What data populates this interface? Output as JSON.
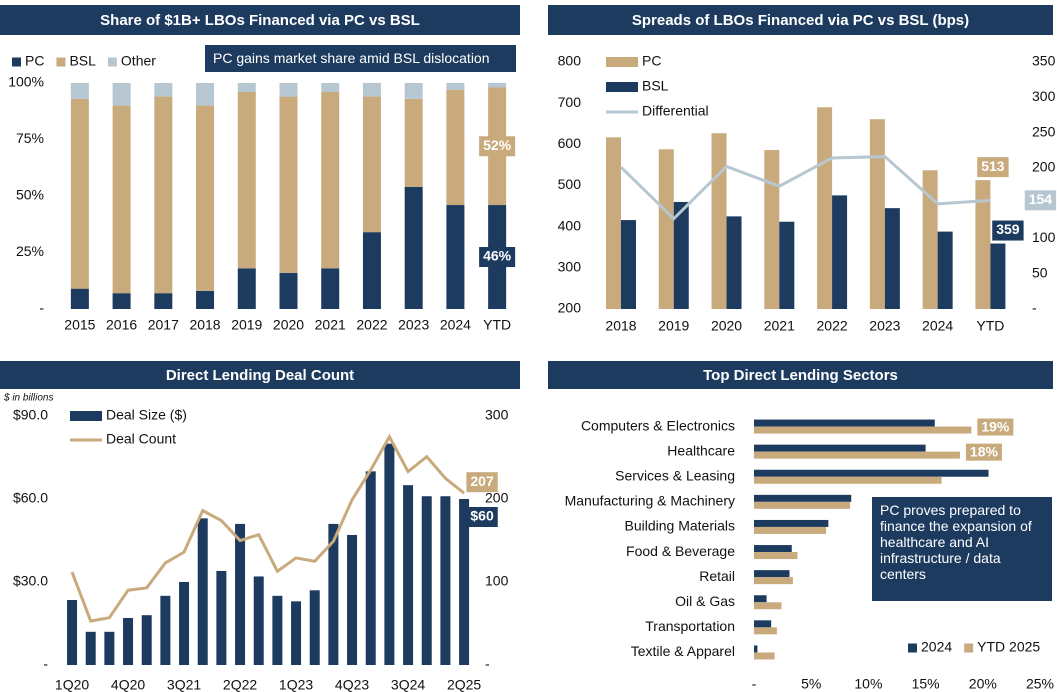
{
  "chart_data": [
    {
      "type": "stacked_bar",
      "title": "Share of $1B+ LBOs Financed via PC vs BSL",
      "annotation": "PC gains market share amid BSL dislocation",
      "categories": [
        "2015",
        "2016",
        "2017",
        "2018",
        "2019",
        "2020",
        "2021",
        "2022",
        "2023",
        "2024",
        "YTD"
      ],
      "series": [
        {
          "name": "PC",
          "color": "#1d3a5f",
          "values": [
            9,
            7,
            7,
            8,
            18,
            16,
            18,
            34,
            54,
            46,
            46
          ],
          "value_labels": [
            null,
            null,
            null,
            null,
            null,
            null,
            null,
            null,
            null,
            null,
            "46%"
          ]
        },
        {
          "name": "BSL",
          "color": "#c8aa7d",
          "values": [
            84,
            83,
            87,
            82,
            78,
            78,
            78,
            60,
            39,
            51,
            52
          ],
          "value_labels": [
            null,
            null,
            null,
            null,
            null,
            null,
            null,
            null,
            null,
            null,
            "52%"
          ]
        },
        {
          "name": "Other",
          "color": "#b7c7d1",
          "values": [
            7,
            10,
            6,
            10,
            4,
            6,
            4,
            6,
            7,
            3,
            2
          ]
        }
      ],
      "ylim": [
        0,
        100
      ],
      "yticks": [
        {
          "value": 0,
          "label": "-"
        },
        {
          "value": 25,
          "label": "25%"
        },
        {
          "value": 50,
          "label": "50%"
        },
        {
          "value": 75,
          "label": "75%"
        },
        {
          "value": 100,
          "label": "100%"
        }
      ],
      "legend": "top-left"
    },
    {
      "type": "bar_line",
      "title": "Spreads of LBOs Financed via PC vs BSL (bps)",
      "categories": [
        "2018",
        "2019",
        "2020",
        "2021",
        "2022",
        "2023",
        "2024",
        "YTD"
      ],
      "series": [
        {
          "name": "PC",
          "color": "#c8aa7d",
          "values": [
            617,
            588,
            627,
            586,
            690,
            661,
            537,
            513
          ],
          "data_labels": "last"
        },
        {
          "name": "BSL",
          "color": "#1d3a5f",
          "values": [
            416,
            460,
            425,
            412,
            476,
            445,
            388,
            359
          ],
          "data_labels": "last"
        },
        {
          "name": "Differential",
          "color": "#b7c7d1",
          "axis": "y2",
          "values": [
            201,
            128,
            202,
            174,
            214,
            216,
            149,
            154
          ],
          "data_labels": "last"
        }
      ],
      "ylim": [
        200,
        800
      ],
      "yticks": [
        200,
        300,
        400,
        500,
        600,
        700,
        800
      ],
      "y2lim": [
        0,
        350
      ],
      "y2ticks": [
        {
          "value": 0,
          "label": "-"
        },
        50,
        100,
        150,
        200,
        250,
        300,
        350
      ],
      "legend": "top-left"
    },
    {
      "type": "bar_line",
      "title": "Direct Lending Deal Count",
      "subtitle": "$ in billions",
      "categories": [
        "1Q20",
        null,
        null,
        "4Q20",
        null,
        null,
        "3Q21",
        null,
        null,
        "2Q22",
        null,
        null,
        "1Q23",
        null,
        null,
        "4Q23",
        null,
        null,
        "3Q24",
        null,
        null,
        "2Q25"
      ],
      "series": [
        {
          "name": "Deal Size ($)",
          "color": "#1d3a5f",
          "values": [
            23.5,
            12,
            12,
            17,
            18,
            25,
            30,
            53,
            34,
            51,
            32,
            25,
            23,
            27,
            51,
            47,
            70,
            80,
            65,
            61,
            61,
            60
          ],
          "value_labels": [
            null,
            null,
            null,
            null,
            null,
            null,
            null,
            null,
            null,
            null,
            null,
            null,
            null,
            null,
            null,
            null,
            null,
            null,
            null,
            null,
            null,
            "$60"
          ]
        },
        {
          "name": "Deal Count",
          "color": "#c8aa7d",
          "axis": "y2",
          "values": [
            112,
            53,
            57,
            90,
            93,
            123,
            136,
            186,
            174,
            150,
            157,
            113,
            129,
            125,
            149,
            199,
            235,
            275,
            233,
            251,
            225,
            207
          ],
          "data_labels": "last"
        }
      ],
      "ylim": [
        0,
        90
      ],
      "yticks": [
        {
          "value": 0,
          "label": "-"
        },
        {
          "value": 30,
          "label": "$30.0"
        },
        {
          "value": 60,
          "label": "$60.0"
        },
        {
          "value": 90,
          "label": "$90.0"
        }
      ],
      "y2lim": [
        0,
        300
      ],
      "y2ticks": [
        {
          "value": 0,
          "label": "-"
        },
        100,
        200,
        300
      ],
      "legend": "top-left"
    },
    {
      "type": "horizontal_bar",
      "title": "Top Direct Lending Sectors",
      "annotation": "PC proves prepared to finance the expansion of healthcare and AI infrastructure / data centers",
      "categories": [
        "Computers & Electronics",
        "Healthcare",
        "Services & Leasing",
        "Manufacturing & Machinery",
        "Building Materials",
        "Food & Beverage",
        "Retail",
        "Oil & Gas",
        "Transportation",
        "Textile & Apparel"
      ],
      "series": [
        {
          "name": "2024",
          "color": "#1d3a5f",
          "values": [
            15.8,
            15,
            20.5,
            8.5,
            6.5,
            3.3,
            3.1,
            1.1,
            1.5,
            0.3
          ]
        },
        {
          "name": "YTD 2025",
          "color": "#c8aa7d",
          "values": [
            19,
            18,
            16.4,
            8.4,
            6.3,
            3.8,
            3.4,
            2.4,
            2.0,
            1.8
          ],
          "value_labels": [
            "19%",
            "18%",
            null,
            null,
            null,
            null,
            null,
            null,
            null,
            null
          ]
        }
      ],
      "xlim": [
        0,
        25
      ],
      "xticks": [
        {
          "value": 0,
          "label": "-"
        },
        {
          "value": 5,
          "label": "5%"
        },
        {
          "value": 10,
          "label": "10%"
        },
        {
          "value": 15,
          "label": "15%"
        },
        {
          "value": 20,
          "label": "20%"
        },
        {
          "value": 25,
          "label": "25%"
        }
      ],
      "legend": "bottom-right"
    }
  ]
}
